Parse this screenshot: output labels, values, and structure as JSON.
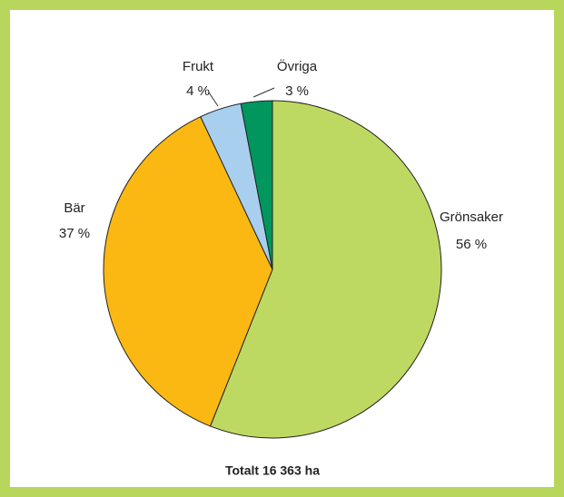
{
  "chart_data": {
    "type": "pie",
    "categories": [
      "Grönsaker",
      "Bär",
      "Frukt",
      "Övriga"
    ],
    "values": [
      56,
      37,
      4,
      3
    ],
    "value_labels": [
      "56 %",
      "37 %",
      "4 %",
      "3 %"
    ],
    "colors": [
      "#bed962",
      "#fbb813",
      "#a9cfee",
      "#00965e"
    ],
    "annotation": "Totalt 16 363 ha"
  }
}
